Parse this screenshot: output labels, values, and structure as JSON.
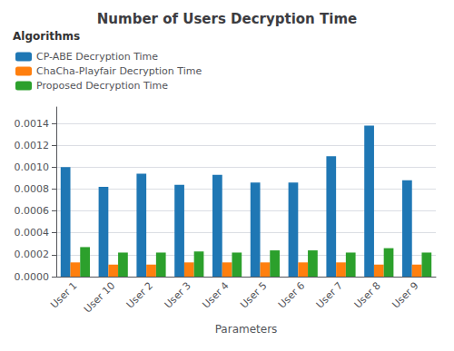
{
  "chart_data": {
    "type": "bar",
    "title": "Number of Users Decryption Time",
    "xlabel": "Parameters",
    "legend_title": "Algorithms",
    "legend": "upper left",
    "grid": true,
    "categories": [
      "User 1",
      "User 10",
      "User 2",
      "User 3",
      "User 4",
      "User 5",
      "User 6",
      "User 7",
      "User 8",
      "User 9"
    ],
    "series": [
      {
        "name": "CP-ABE Decryption Time",
        "color": "#1f77b4",
        "values": [
          0.001,
          0.00082,
          0.00094,
          0.00084,
          0.00093,
          0.00086,
          0.00086,
          0.0011,
          0.00138,
          0.00088
        ]
      },
      {
        "name": "ChaCha-Playfair Decryption Time",
        "color": "#ff7f0e",
        "values": [
          0.00013,
          0.00011,
          0.00011,
          0.00013,
          0.00013,
          0.00013,
          0.00013,
          0.00013,
          0.00011,
          0.00011
        ]
      },
      {
        "name": "Proposed Decryption Time",
        "color": "#2ca02c",
        "values": [
          0.00027,
          0.00022,
          0.00022,
          0.00023,
          0.00022,
          0.00024,
          0.00024,
          0.00022,
          0.00026,
          0.00022
        ]
      }
    ],
    "ylim": [
      0,
      0.00155
    ],
    "yticks": [
      {
        "value": 0,
        "label": "0.0000"
      },
      {
        "value": 0.0002,
        "label": "0.0002"
      },
      {
        "value": 0.0004,
        "label": "0.0004"
      },
      {
        "value": 0.0006,
        "label": "0.0006"
      },
      {
        "value": 0.0008,
        "label": "0.0008"
      },
      {
        "value": 0.001,
        "label": "0.0010"
      },
      {
        "value": 0.0012,
        "label": "0.0012"
      },
      {
        "value": 0.0014,
        "label": "0.0014"
      }
    ]
  }
}
